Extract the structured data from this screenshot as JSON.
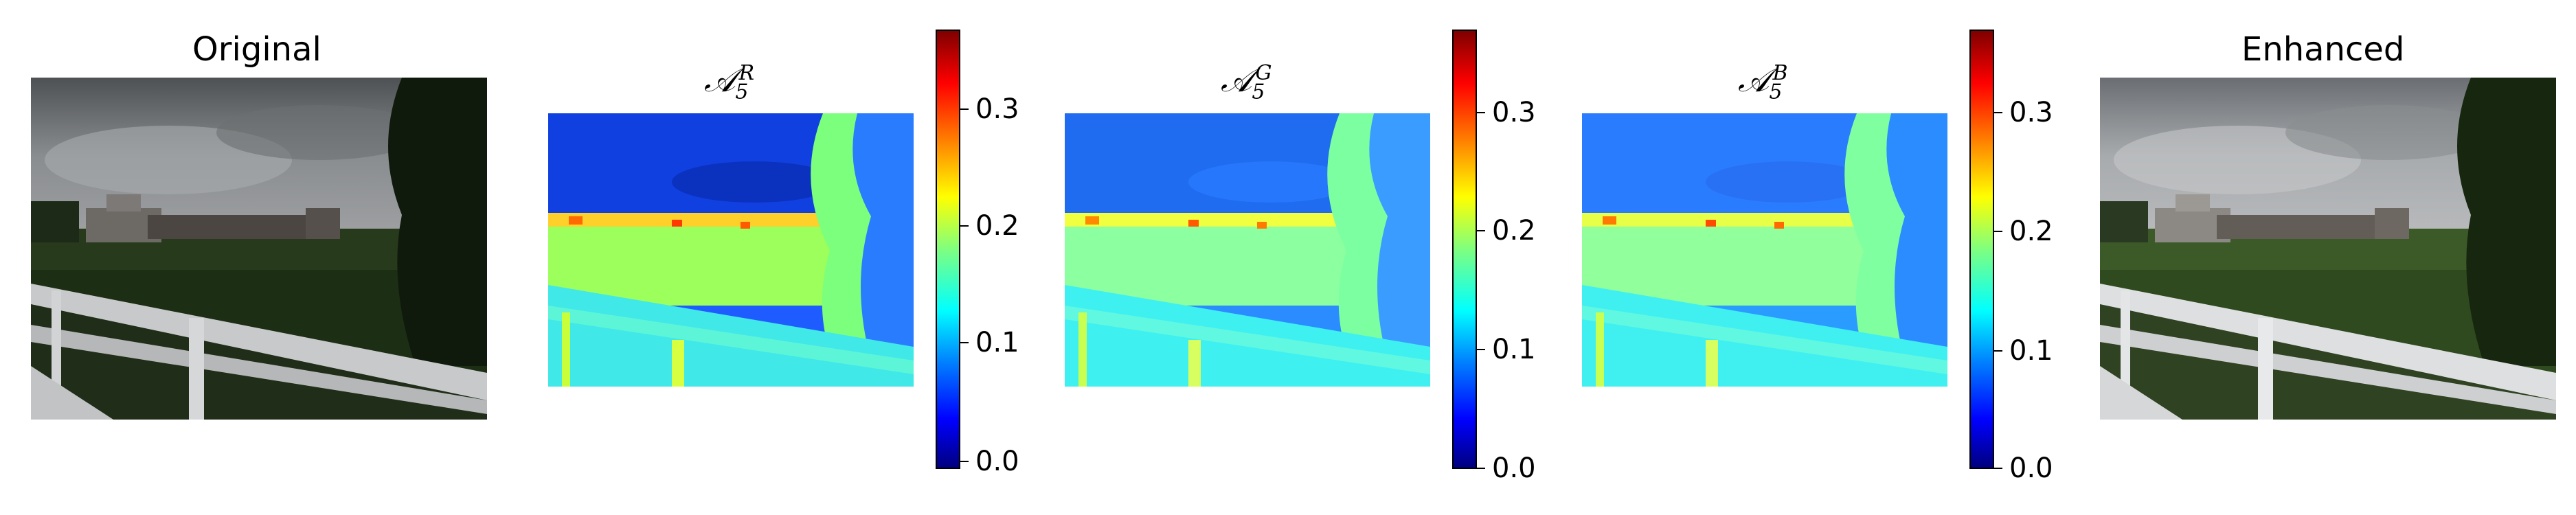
{
  "panels": {
    "original": {
      "title": "Original"
    },
    "enhanced": {
      "title": "Enhanced"
    },
    "map_r": {
      "symbol": "𝒜",
      "sub": "5",
      "sup": "R"
    },
    "map_g": {
      "symbol": "𝒜",
      "sub": "5",
      "sup": "G"
    },
    "map_b": {
      "symbol": "𝒜",
      "sub": "5",
      "sup": "B"
    }
  },
  "colorbars": [
    {
      "ticks": [
        "0.0",
        "0.1",
        "0.2",
        "0.3"
      ],
      "values": [
        0.0,
        0.1,
        0.2,
        0.3
      ],
      "max": 0.365
    },
    {
      "ticks": [
        "0.0",
        "0.1",
        "0.2",
        "0.3"
      ],
      "values": [
        0.0,
        0.1,
        0.2,
        0.3
      ],
      "max": 0.365
    },
    {
      "ticks": [
        "0.0",
        "0.1",
        "0.2",
        "0.3"
      ],
      "values": [
        0.0,
        0.1,
        0.2,
        0.3
      ],
      "max": 0.365
    }
  ],
  "colormap": "jet"
}
